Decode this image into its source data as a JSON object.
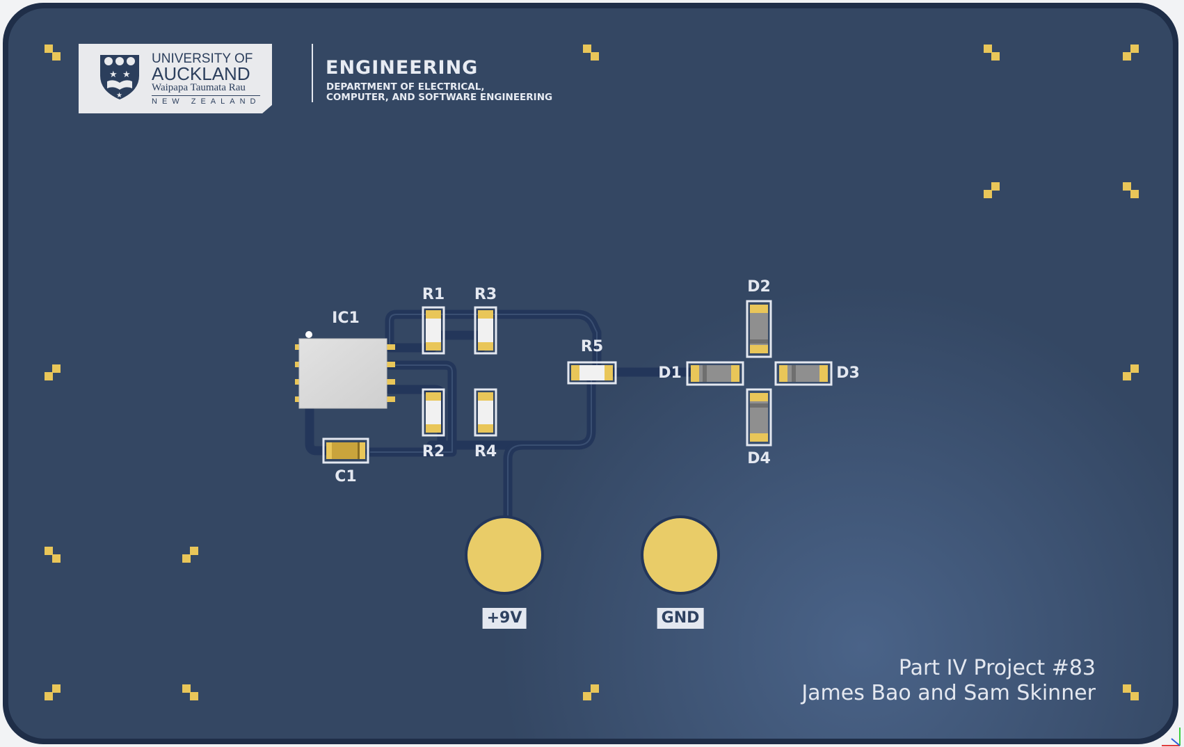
{
  "logo": {
    "line1": "UNIVERSITY OF",
    "line2": "AUCKLAND",
    "line3": "Waipapa Taumata Rau",
    "line4": "NEW ZEALAND"
  },
  "department": {
    "title": "ENGINEERING",
    "subtitle_line1": "DEPARTMENT OF ELECTRICAL,",
    "subtitle_line2": "COMPUTER, AND SOFTWARE ENGINEERING"
  },
  "components": {
    "ic1": "IC1",
    "r1": "R1",
    "r2": "R2",
    "r3": "R3",
    "r4": "R4",
    "r5": "R5",
    "c1": "C1",
    "d1": "D1",
    "d2": "D2",
    "d3": "D3",
    "d4": "D4"
  },
  "pads": {
    "positive": "+9V",
    "ground": "GND"
  },
  "credits": {
    "line1": "Part IV Project #83",
    "line2": "James Bao and Sam Skinner"
  },
  "colors": {
    "board": "#344763",
    "board_edge": "#1f2e48",
    "trace": "#23365a",
    "copper": "#e9cc68",
    "silkscreen": "#e4e8f0"
  },
  "icons": {
    "logo": "university-crest-icon",
    "axis": "3d-axis-icon"
  }
}
